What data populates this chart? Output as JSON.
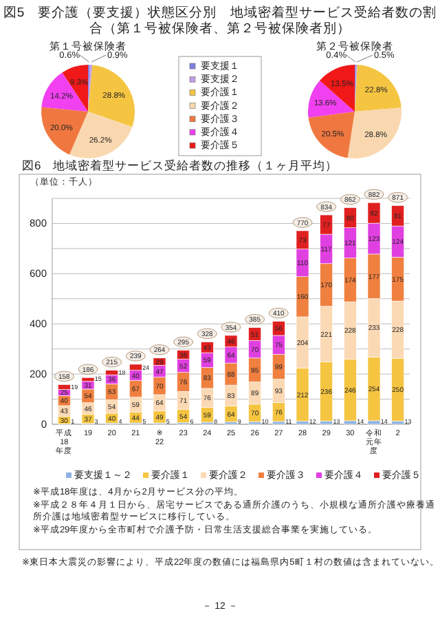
{
  "chart_data": [
    {
      "type": "pie",
      "title": "図5　要介護（要支援）状態区分別　地域密着型サービス受給者数の割合（第１号被保険者、第２号被保険者別）",
      "subtitle": "第１号被保険者",
      "categories": [
        "要支援１",
        "要支援２",
        "要介護１",
        "要介護２",
        "要介護３",
        "要介護４",
        "要介護５"
      ],
      "values": [
        0.6,
        0.9,
        28.8,
        26.2,
        20.0,
        14.2,
        9.3
      ],
      "value_labels": [
        "0.6%",
        "0.9%",
        "28.8%",
        "26.2%",
        "20.0%",
        "14.2%",
        "9.3%"
      ],
      "colors": [
        "#8080e0",
        "#c0a0e8",
        "#f5c542",
        "#f9d8b0",
        "#f07840",
        "#f040f0",
        "#f01818"
      ],
      "legend": "right"
    },
    {
      "type": "pie",
      "title": "第２号被保険者",
      "values": [
        0.4,
        0.5,
        22.8,
        28.8,
        20.5,
        13.6,
        13.5
      ],
      "value_labels": [
        "0.4%",
        "0.5%",
        "22.8%",
        "28.8%",
        "20.5%",
        "13.6%",
        "13.5%"
      ],
      "colors": [
        "#8080e0",
        "#c0a0e8",
        "#f5c542",
        "#f9d8b0",
        "#f07840",
        "#f040f0",
        "#f01818"
      ]
    },
    {
      "type": "bar",
      "stacked": true,
      "title": "図6　地域密着型サービス受給者数の推移（１ヶ月平均）",
      "ylabel": "（単位：千人）",
      "categories": [
        "平成18年度",
        "19",
        "20",
        "21",
        "※22",
        "23",
        "24",
        "25",
        "26",
        "27",
        "28",
        "29",
        "30",
        "令和元年度",
        "2"
      ],
      "series": [
        {
          "name": "要支援１～２",
          "color": "#8fb4e3",
          "values": [
            1,
            3,
            4,
            5,
            5,
            6,
            8,
            9,
            10,
            11,
            12,
            13,
            14,
            14,
            13
          ]
        },
        {
          "name": "要介護１",
          "color": "#f5c542",
          "values": [
            30,
            37,
            40,
            44,
            49,
            54,
            59,
            64,
            70,
            76,
            212,
            236,
            246,
            254,
            250
          ]
        },
        {
          "name": "要介護２",
          "color": "#fbd9b5",
          "values": [
            43,
            46,
            54,
            59,
            64,
            71,
            76,
            83,
            89,
            93,
            204,
            221,
            228,
            233,
            228
          ]
        },
        {
          "name": "要介護３",
          "color": "#f08040",
          "values": [
            40,
            54,
            63,
            67,
            70,
            76,
            83,
            88,
            95,
            99,
            160,
            170,
            174,
            177,
            175
          ]
        },
        {
          "name": "要介護４",
          "color": "#e040e0",
          "values": [
            25,
            31,
            36,
            40,
            47,
            52,
            59,
            64,
            70,
            75,
            110,
            117,
            121,
            123,
            124
          ]
        },
        {
          "name": "要介護５",
          "color": "#e02020",
          "values": [
            19,
            15,
            18,
            24,
            29,
            36,
            43,
            46,
            51,
            56,
            73,
            77,
            80,
            82,
            81
          ]
        }
      ],
      "totals": [
        "158",
        "186",
        "215",
        "239",
        "264",
        "295",
        "328",
        "354",
        "385",
        "410",
        "770",
        "834",
        "862",
        "882",
        "871"
      ],
      "data_labels": true,
      "ylim": [
        0,
        900
      ],
      "yticks": [
        0,
        {
          "value": 100,
          "label": null
        },
        200,
        {
          "value": 300,
          "label": null
        },
        400,
        {
          "value": 500,
          "label": null
        },
        600,
        {
          "value": 700,
          "label": null
        },
        800,
        {
          "value": 900,
          "label": null
        }
      ],
      "grid": "y",
      "legend": "bottom",
      "annotations": [
        "※平成18年度は、4月から2月サービス分の平均。",
        "※平成２８年４月１日から、居宅サービスである通所介護のうち、小規模な通所介護や療養通所介護は地域密着型サービスに移行している。",
        "※平成29年度から全市町村で介護予防・日常生活支援総合事業を実施している。",
        "※東日本大震災の影響により、平成22年度の数値には福島県内5町１村の数値は含まれていない。",
        "－ 12 －"
      ]
    }
  ]
}
